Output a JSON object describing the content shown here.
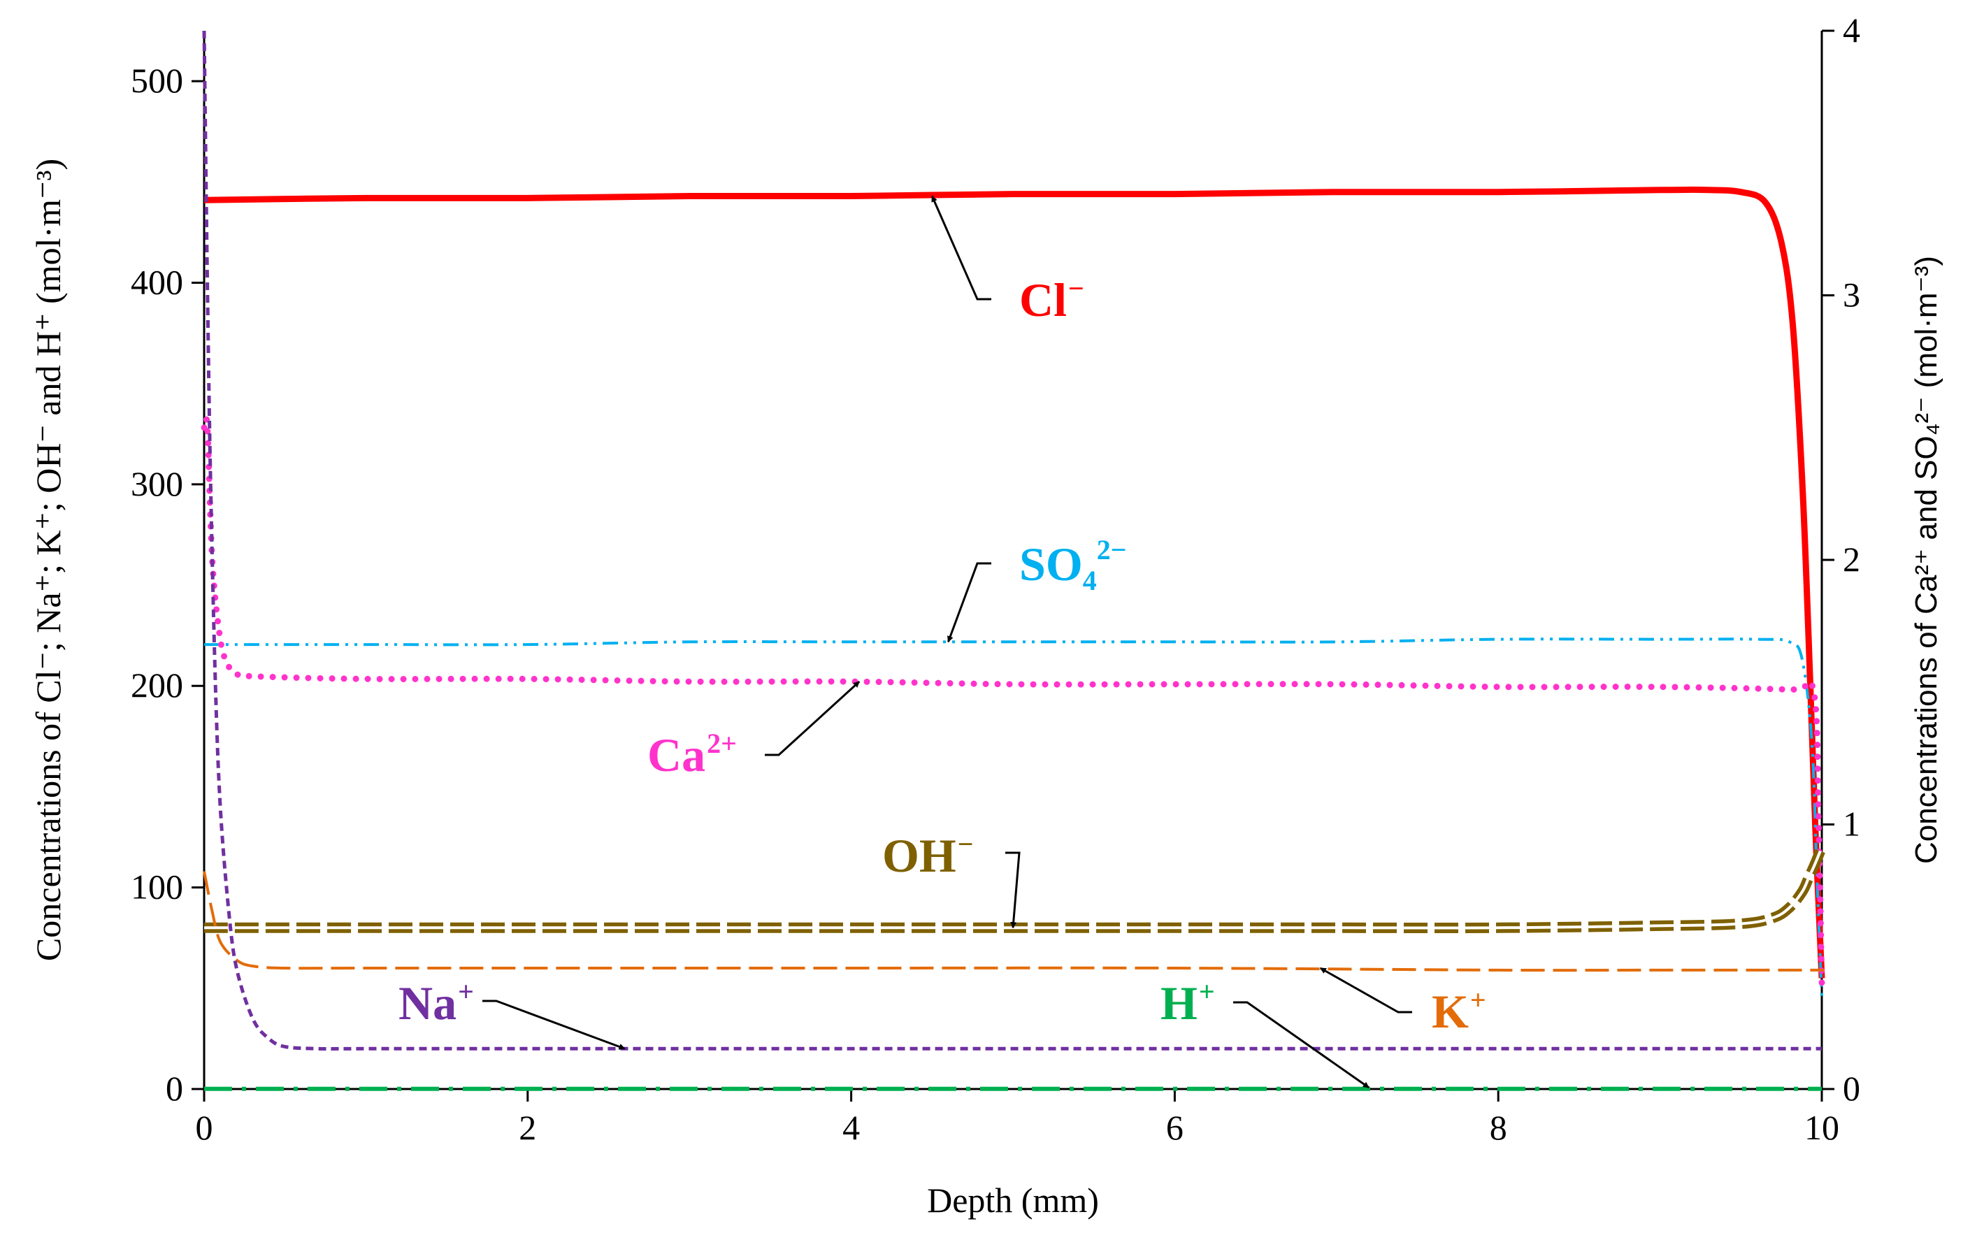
{
  "chart_data": {
    "type": "line",
    "xlabel": "Depth (mm)",
    "ylabel_left": "Concentrations of Cl⁻; Na⁺; K⁺; OH⁻ and H⁺ (mol·m⁻³)",
    "ylabel_right": "Concentrations of Ca²⁺ and SO₄²⁻ (mol·m⁻³)",
    "xlim": [
      0,
      10
    ],
    "ylim_left": [
      0,
      525
    ],
    "ylim_right": [
      0,
      4
    ],
    "x_ticks": [
      "0",
      "2",
      "4",
      "6",
      "8",
      "10"
    ],
    "y_ticks_left": [
      "0",
      "100",
      "200",
      "300",
      "400",
      "500"
    ],
    "y_ticks_right": [
      "0",
      "1",
      "2",
      "3",
      "4"
    ],
    "series": [
      {
        "name": "Cl⁻",
        "label": "Cl",
        "sup": "−",
        "axis": "left",
        "color": "#ff0000",
        "style": "solid",
        "x": [
          0,
          1,
          2,
          3,
          4,
          5,
          6,
          7,
          8,
          9,
          9.3,
          9.5,
          9.65,
          9.75,
          9.82,
          9.88,
          9.92,
          9.96,
          10.0
        ],
        "y": [
          441,
          442,
          442,
          443,
          443,
          444,
          444,
          445,
          445,
          446,
          446,
          445,
          440,
          420,
          380,
          300,
          220,
          130,
          55
        ]
      },
      {
        "name": "SO₄²⁻",
        "label": "SO",
        "sub": "4",
        "sup": "2−",
        "axis": "right",
        "color": "#00b0f0",
        "style": "dashdotdot",
        "x": [
          0,
          1,
          2,
          3,
          4,
          5,
          6,
          7,
          8,
          9,
          9.6,
          9.8,
          9.88,
          9.94,
          9.97,
          10.0
        ],
        "y": [
          1.68,
          1.68,
          1.68,
          1.69,
          1.69,
          1.69,
          1.69,
          1.69,
          1.7,
          1.7,
          1.7,
          1.69,
          1.62,
          1.3,
          0.8,
          0.35
        ]
      },
      {
        "name": "Ca²⁺",
        "label": "Ca",
        "sup": "2+",
        "axis": "right",
        "color": "#ff33cc",
        "style": "dotted",
        "x": [
          0,
          0.02,
          0.05,
          0.1,
          0.15,
          0.2,
          0.3,
          1,
          2,
          3,
          4,
          5,
          6,
          7,
          8,
          9,
          9.8,
          9.95,
          9.98,
          10.0
        ],
        "y": [
          2.5,
          2.5,
          2.0,
          1.7,
          1.6,
          1.57,
          1.56,
          1.55,
          1.55,
          1.54,
          1.54,
          1.53,
          1.53,
          1.53,
          1.52,
          1.52,
          1.51,
          1.5,
          1.0,
          0.4
        ]
      },
      {
        "name": "OH⁻",
        "label": "OH",
        "sup": "−",
        "axis": "left",
        "color": "#7f6000",
        "style": "double-dash",
        "x": [
          0,
          1,
          2,
          3,
          4,
          5,
          6,
          7,
          8,
          9,
          9.5,
          9.7,
          9.8,
          9.88,
          9.92,
          9.96,
          10.0
        ],
        "y": [
          80,
          80,
          80,
          80,
          80,
          80,
          80,
          80,
          80,
          81,
          82,
          85,
          90,
          98,
          105,
          112,
          120
        ]
      },
      {
        "name": "K⁺",
        "label": "K",
        "sup": "+",
        "axis": "left",
        "color": "#e36c09",
        "style": "longdash",
        "x": [
          0,
          0.05,
          0.1,
          0.2,
          0.3,
          0.5,
          1,
          2,
          4,
          6,
          8,
          9,
          9.9,
          10.0
        ],
        "y": [
          108,
          88,
          73,
          64,
          61,
          60,
          60,
          60,
          60,
          60,
          59,
          59,
          59,
          59
        ]
      },
      {
        "name": "Na⁺",
        "label": "Na",
        "sup": "+",
        "axis": "left",
        "color": "#7030a0",
        "style": "shortdash",
        "x": [
          0,
          0.02,
          0.04,
          0.07,
          0.1,
          0.15,
          0.2,
          0.3,
          0.4,
          0.5,
          0.7,
          1,
          2,
          4,
          6,
          8,
          10
        ],
        "y": [
          525,
          400,
          300,
          200,
          140,
          90,
          60,
          35,
          25,
          21,
          20,
          20,
          20,
          20,
          20,
          20,
          20
        ]
      },
      {
        "name": "H⁺",
        "label": "H",
        "sup": "+",
        "axis": "left",
        "color": "#00b050",
        "style": "longdash-dot",
        "x": [
          0,
          2,
          4,
          6,
          8,
          10
        ],
        "y": [
          0.1,
          0.1,
          0.1,
          0.1,
          0.1,
          0.1
        ]
      }
    ],
    "annotations": [
      {
        "series": "Cl⁻",
        "text": "Cl",
        "sup": "−",
        "points_to": [
          4.5,
          443
        ]
      },
      {
        "series": "SO₄²⁻",
        "text": "SO",
        "sub": "4",
        "sup": "2−",
        "points_to": [
          4.6,
          1.69
        ]
      },
      {
        "series": "Ca²⁺",
        "text": "Ca",
        "sup": "2+",
        "points_to": [
          4.05,
          1.54
        ]
      },
      {
        "series": "OH⁻",
        "text": "OH",
        "sup": "−",
        "points_to": [
          5.0,
          80
        ]
      },
      {
        "series": "K⁺",
        "text": "K",
        "sup": "+",
        "points_to": [
          6.9,
          60
        ]
      },
      {
        "series": "Na⁺",
        "text": "Na",
        "sup": "+",
        "points_to": [
          2.6,
          20
        ]
      },
      {
        "series": "H⁺",
        "text": "H",
        "sup": "+",
        "points_to": [
          7.2,
          0
        ]
      }
    ]
  }
}
